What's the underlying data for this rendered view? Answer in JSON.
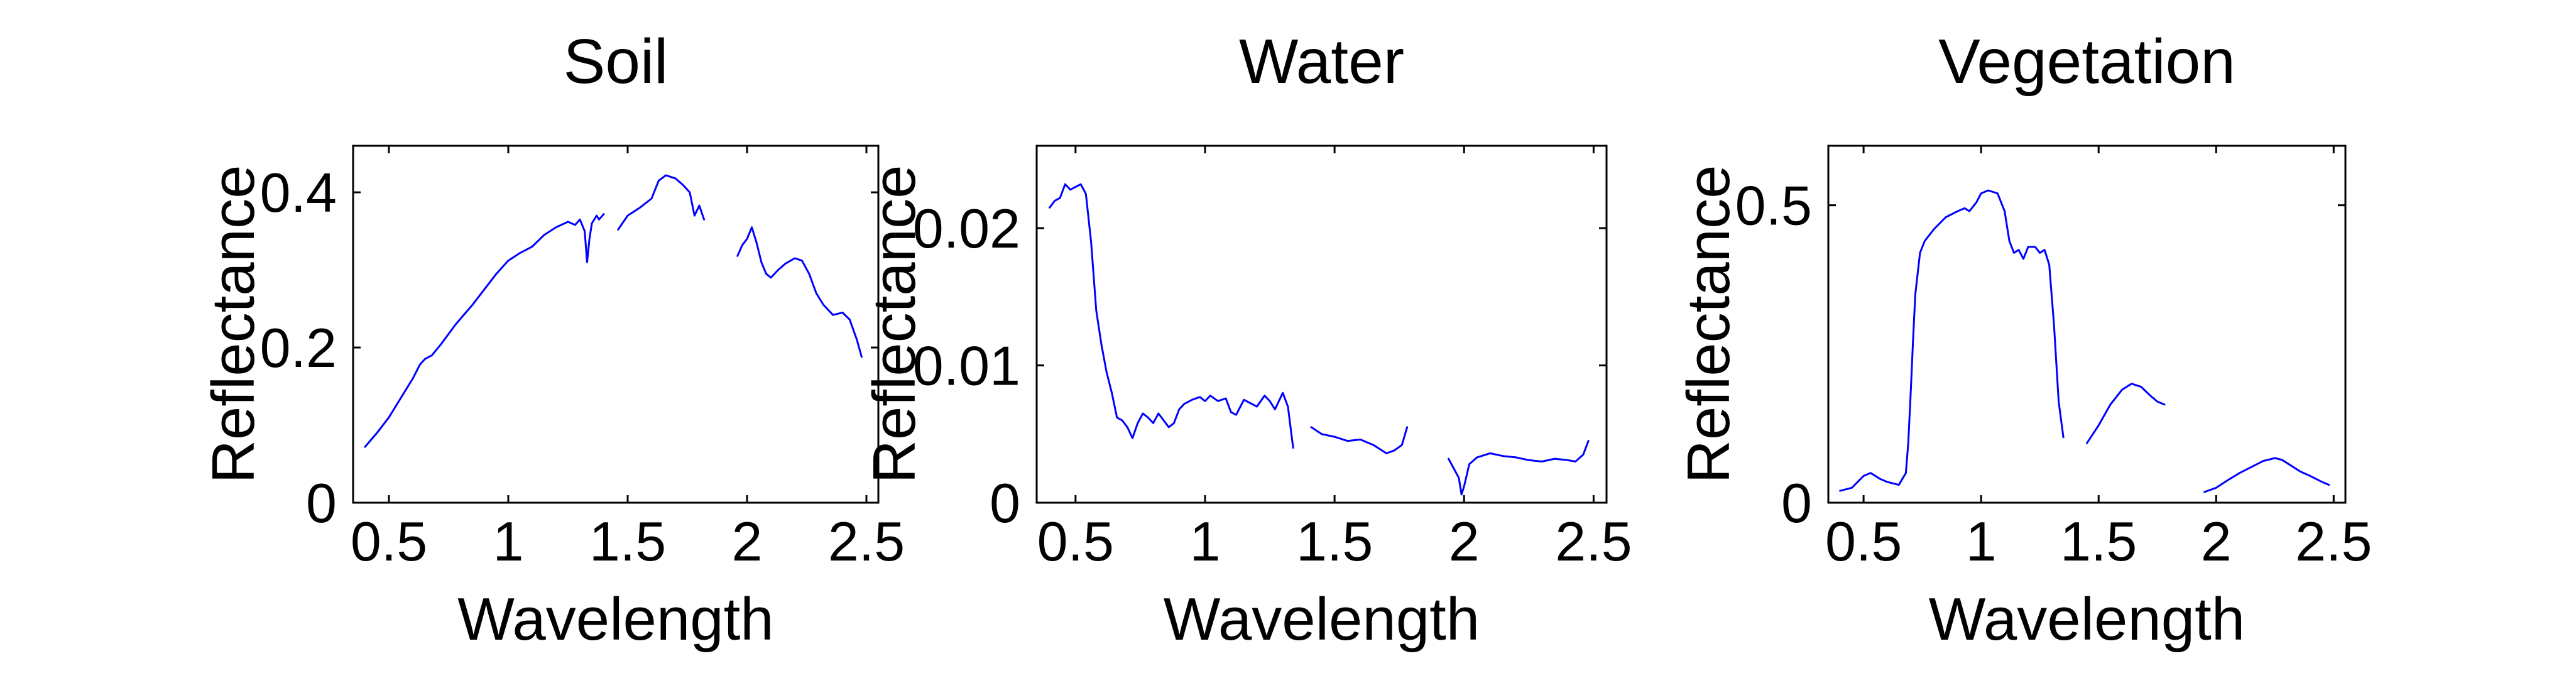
{
  "figure": {
    "background": "#ffffff",
    "line_color": "#0000ff"
  },
  "chart_data": [
    {
      "type": "line",
      "title": "Soil",
      "xlabel": "Wavelength",
      "ylabel": "Reflectance",
      "xlim": [
        0.35,
        2.55
      ],
      "ylim": [
        0,
        0.46
      ],
      "xticks": [
        0.5,
        1,
        1.5,
        2,
        2.5
      ],
      "xtick_labels": [
        "0.5",
        "1",
        "1.5",
        "2",
        "2.5"
      ],
      "yticks": [
        0,
        0.2,
        0.4
      ],
      "ytick_labels": [
        "0",
        "0.2",
        "0.4"
      ],
      "series": [
        {
          "name": "Soil",
          "segments": [
            [
              [
                0.4,
                0.072
              ],
              [
                0.45,
                0.09
              ],
              [
                0.5,
                0.11
              ],
              [
                0.55,
                0.135
              ],
              [
                0.6,
                0.16
              ],
              [
                0.63,
                0.178
              ],
              [
                0.65,
                0.185
              ],
              [
                0.68,
                0.19
              ],
              [
                0.72,
                0.205
              ],
              [
                0.78,
                0.23
              ],
              [
                0.85,
                0.255
              ],
              [
                0.9,
                0.275
              ],
              [
                0.95,
                0.295
              ],
              [
                1.0,
                0.312
              ],
              [
                1.05,
                0.322
              ],
              [
                1.1,
                0.33
              ],
              [
                1.15,
                0.345
              ],
              [
                1.2,
                0.355
              ],
              [
                1.25,
                0.362
              ],
              [
                1.28,
                0.358
              ],
              [
                1.3,
                0.365
              ],
              [
                1.32,
                0.35
              ],
              [
                1.33,
                0.31
              ],
              [
                1.34,
                0.34
              ],
              [
                1.35,
                0.36
              ],
              [
                1.37,
                0.37
              ],
              [
                1.38,
                0.365
              ],
              [
                1.4,
                0.372
              ]
            ],
            [
              [
                1.46,
                0.352
              ],
              [
                1.5,
                0.37
              ],
              [
                1.55,
                0.38
              ],
              [
                1.6,
                0.392
              ],
              [
                1.63,
                0.415
              ],
              [
                1.66,
                0.422
              ],
              [
                1.7,
                0.418
              ],
              [
                1.73,
                0.41
              ],
              [
                1.76,
                0.4
              ],
              [
                1.78,
                0.37
              ],
              [
                1.8,
                0.383
              ],
              [
                1.82,
                0.365
              ]
            ],
            [
              [
                1.96,
                0.318
              ],
              [
                1.98,
                0.332
              ],
              [
                2.0,
                0.34
              ],
              [
                2.02,
                0.355
              ],
              [
                2.04,
                0.335
              ],
              [
                2.06,
                0.31
              ],
              [
                2.08,
                0.295
              ],
              [
                2.1,
                0.29
              ],
              [
                2.13,
                0.3
              ],
              [
                2.16,
                0.308
              ],
              [
                2.2,
                0.315
              ],
              [
                2.23,
                0.312
              ],
              [
                2.26,
                0.295
              ],
              [
                2.29,
                0.27
              ],
              [
                2.32,
                0.255
              ],
              [
                2.36,
                0.242
              ],
              [
                2.4,
                0.245
              ],
              [
                2.43,
                0.236
              ],
              [
                2.46,
                0.21
              ],
              [
                2.48,
                0.188
              ]
            ]
          ]
        }
      ]
    },
    {
      "type": "line",
      "title": "Water",
      "xlabel": "Wavelength",
      "ylabel": "Reflectance",
      "xlim": [
        0.35,
        2.55
      ],
      "ylim": [
        0,
        0.026
      ],
      "xticks": [
        0.5,
        1,
        1.5,
        2,
        2.5
      ],
      "xtick_labels": [
        "0.5",
        "1",
        "1.5",
        "2",
        "2.5"
      ],
      "yticks": [
        0,
        0.01,
        0.02
      ],
      "ytick_labels": [
        "0",
        "0.01",
        "0.02"
      ],
      "series": [
        {
          "name": "Water",
          "segments": [
            [
              [
                0.4,
                0.0215
              ],
              [
                0.42,
                0.022
              ],
              [
                0.44,
                0.0222
              ],
              [
                0.46,
                0.0232
              ],
              [
                0.48,
                0.0228
              ],
              [
                0.5,
                0.023
              ],
              [
                0.52,
                0.0232
              ],
              [
                0.54,
                0.0225
              ],
              [
                0.56,
                0.019
              ],
              [
                0.58,
                0.014
              ],
              [
                0.6,
                0.0115
              ],
              [
                0.62,
                0.0095
              ],
              [
                0.64,
                0.008
              ],
              [
                0.66,
                0.0062
              ],
              [
                0.68,
                0.006
              ],
              [
                0.7,
                0.0055
              ],
              [
                0.72,
                0.0047
              ],
              [
                0.74,
                0.0058
              ],
              [
                0.76,
                0.0065
              ],
              [
                0.78,
                0.0062
              ],
              [
                0.8,
                0.0058
              ],
              [
                0.82,
                0.0065
              ],
              [
                0.84,
                0.006
              ],
              [
                0.86,
                0.0055
              ],
              [
                0.88,
                0.0058
              ],
              [
                0.9,
                0.0068
              ],
              [
                0.92,
                0.0072
              ],
              [
                0.95,
                0.0075
              ],
              [
                0.98,
                0.0077
              ],
              [
                1.0,
                0.0074
              ],
              [
                1.02,
                0.0078
              ],
              [
                1.05,
                0.0074
              ],
              [
                1.08,
                0.0076
              ],
              [
                1.1,
                0.0066
              ],
              [
                1.12,
                0.0064
              ],
              [
                1.15,
                0.0075
              ],
              [
                1.18,
                0.0072
              ],
              [
                1.2,
                0.007
              ],
              [
                1.23,
                0.0078
              ],
              [
                1.25,
                0.0074
              ],
              [
                1.27,
                0.0068
              ],
              [
                1.3,
                0.008
              ],
              [
                1.32,
                0.007
              ],
              [
                1.33,
                0.0055
              ],
              [
                1.34,
                0.004
              ]
            ],
            [
              [
                1.41,
                0.0055
              ],
              [
                1.45,
                0.005
              ],
              [
                1.5,
                0.0048
              ],
              [
                1.55,
                0.0045
              ],
              [
                1.6,
                0.0046
              ],
              [
                1.65,
                0.0042
              ],
              [
                1.7,
                0.0036
              ],
              [
                1.73,
                0.0038
              ],
              [
                1.76,
                0.0042
              ],
              [
                1.78,
                0.0055
              ]
            ],
            [
              [
                1.94,
                0.0032
              ],
              [
                1.96,
                0.0025
              ],
              [
                1.98,
                0.0018
              ],
              [
                1.99,
                0.0006
              ],
              [
                2.0,
                0.0012
              ],
              [
                2.02,
                0.0028
              ],
              [
                2.05,
                0.0033
              ],
              [
                2.1,
                0.0036
              ],
              [
                2.15,
                0.0034
              ],
              [
                2.2,
                0.0033
              ],
              [
                2.25,
                0.0031
              ],
              [
                2.3,
                0.003
              ],
              [
                2.35,
                0.0032
              ],
              [
                2.4,
                0.0031
              ],
              [
                2.43,
                0.003
              ],
              [
                2.46,
                0.0035
              ],
              [
                2.48,
                0.0045
              ]
            ]
          ]
        }
      ]
    },
    {
      "type": "line",
      "title": "Vegetation",
      "xlabel": "Wavelength",
      "ylabel": "Reflectance",
      "xlim": [
        0.35,
        2.55
      ],
      "ylim": [
        0,
        0.6
      ],
      "xticks": [
        0.5,
        1,
        1.5,
        2,
        2.5
      ],
      "xtick_labels": [
        "0.5",
        "1",
        "1.5",
        "2",
        "2.5"
      ],
      "yticks": [
        0,
        0.5
      ],
      "ytick_labels": [
        "0",
        "0.5"
      ],
      "series": [
        {
          "name": "Vegetation",
          "segments": [
            [
              [
                0.4,
                0.02
              ],
              [
                0.45,
                0.025
              ],
              [
                0.5,
                0.045
              ],
              [
                0.53,
                0.05
              ],
              [
                0.57,
                0.04
              ],
              [
                0.6,
                0.035
              ],
              [
                0.65,
                0.03
              ],
              [
                0.68,
                0.05
              ],
              [
                0.69,
                0.1
              ],
              [
                0.7,
                0.18
              ],
              [
                0.71,
                0.27
              ],
              [
                0.72,
                0.35
              ],
              [
                0.74,
                0.42
              ],
              [
                0.76,
                0.44
              ],
              [
                0.8,
                0.46
              ],
              [
                0.85,
                0.48
              ],
              [
                0.9,
                0.49
              ],
              [
                0.93,
                0.495
              ],
              [
                0.95,
                0.49
              ],
              [
                0.98,
                0.505
              ],
              [
                1.0,
                0.52
              ],
              [
                1.03,
                0.525
              ],
              [
                1.07,
                0.52
              ],
              [
                1.1,
                0.49
              ],
              [
                1.12,
                0.44
              ],
              [
                1.14,
                0.42
              ],
              [
                1.16,
                0.425
              ],
              [
                1.18,
                0.41
              ],
              [
                1.2,
                0.43
              ],
              [
                1.23,
                0.43
              ],
              [
                1.25,
                0.42
              ],
              [
                1.27,
                0.425
              ],
              [
                1.29,
                0.4
              ],
              [
                1.31,
                0.3
              ],
              [
                1.33,
                0.17
              ],
              [
                1.35,
                0.11
              ]
            ],
            [
              [
                1.45,
                0.1
              ],
              [
                1.5,
                0.13
              ],
              [
                1.55,
                0.165
              ],
              [
                1.6,
                0.19
              ],
              [
                1.64,
                0.2
              ],
              [
                1.68,
                0.195
              ],
              [
                1.72,
                0.18
              ],
              [
                1.75,
                0.17
              ],
              [
                1.78,
                0.165
              ]
            ],
            [
              [
                1.95,
                0.018
              ],
              [
                2.0,
                0.025
              ],
              [
                2.05,
                0.038
              ],
              [
                2.1,
                0.05
              ],
              [
                2.15,
                0.06
              ],
              [
                2.2,
                0.07
              ],
              [
                2.25,
                0.075
              ],
              [
                2.28,
                0.072
              ],
              [
                2.32,
                0.062
              ],
              [
                2.36,
                0.052
              ],
              [
                2.4,
                0.045
              ],
              [
                2.45,
                0.035
              ],
              [
                2.48,
                0.03
              ]
            ]
          ]
        }
      ]
    }
  ]
}
